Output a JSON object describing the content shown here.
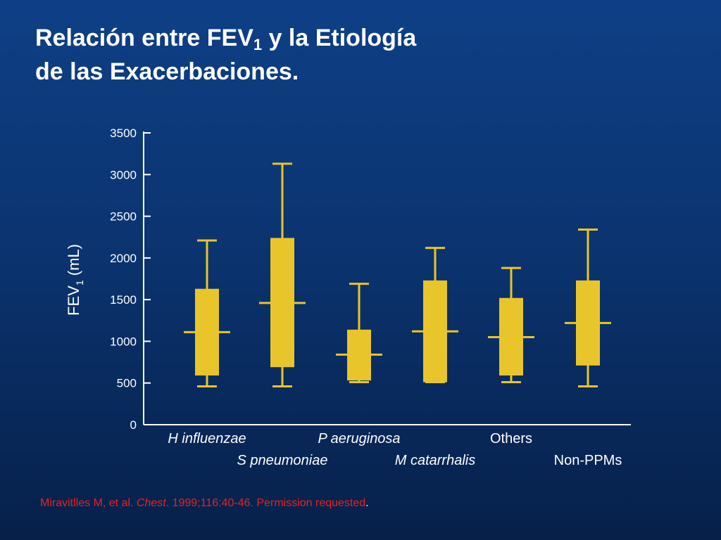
{
  "title": {
    "line1_prefix": "Relación entre FEV",
    "line1_sub": "1",
    "line1_suffix": " y la Etiología",
    "line2": "de las  Exacerbaciones."
  },
  "citation": {
    "authors": "Miravitlles M,  et al. ",
    "journal": "Chest",
    "details": ". 1999;116:40-46. Permission requested",
    "end": "."
  },
  "colors": {
    "background_top": "#0e3f86",
    "background_bottom": "#06204a",
    "box": "#e8c52a",
    "axis": "#ffffff",
    "citation": "#e8231f"
  },
  "chart_data": {
    "type": "box",
    "ylabel_main": "FEV",
    "ylabel_sub": "1",
    "ylabel_unit": " (mL)",
    "ylim": [
      0,
      3500
    ],
    "yticks": [
      "0",
      "500",
      "1000",
      "1500",
      "2000",
      "2500",
      "3000",
      "3500"
    ],
    "grid": false,
    "categories": [
      "H influenzae",
      "S pneumoniae",
      "P aeruginosa",
      "M catarrhalis",
      "Others",
      "Non-PPMs"
    ],
    "boxes": [
      {
        "min": 460,
        "q1": 590,
        "median": 1110,
        "q3": 1630,
        "max": 2210
      },
      {
        "min": 460,
        "q1": 690,
        "median": 1460,
        "q3": 2240,
        "max": 3130
      },
      {
        "min": 510,
        "q1": 530,
        "median": 840,
        "q3": 1140,
        "max": 1690
      },
      {
        "min": 510,
        "q1": 510,
        "median": 1120,
        "q3": 1730,
        "max": 2120
      },
      {
        "min": 510,
        "q1": 590,
        "median": 1050,
        "q3": 1520,
        "max": 1880
      },
      {
        "min": 460,
        "q1": 710,
        "median": 1220,
        "q3": 1730,
        "max": 2340
      }
    ]
  }
}
